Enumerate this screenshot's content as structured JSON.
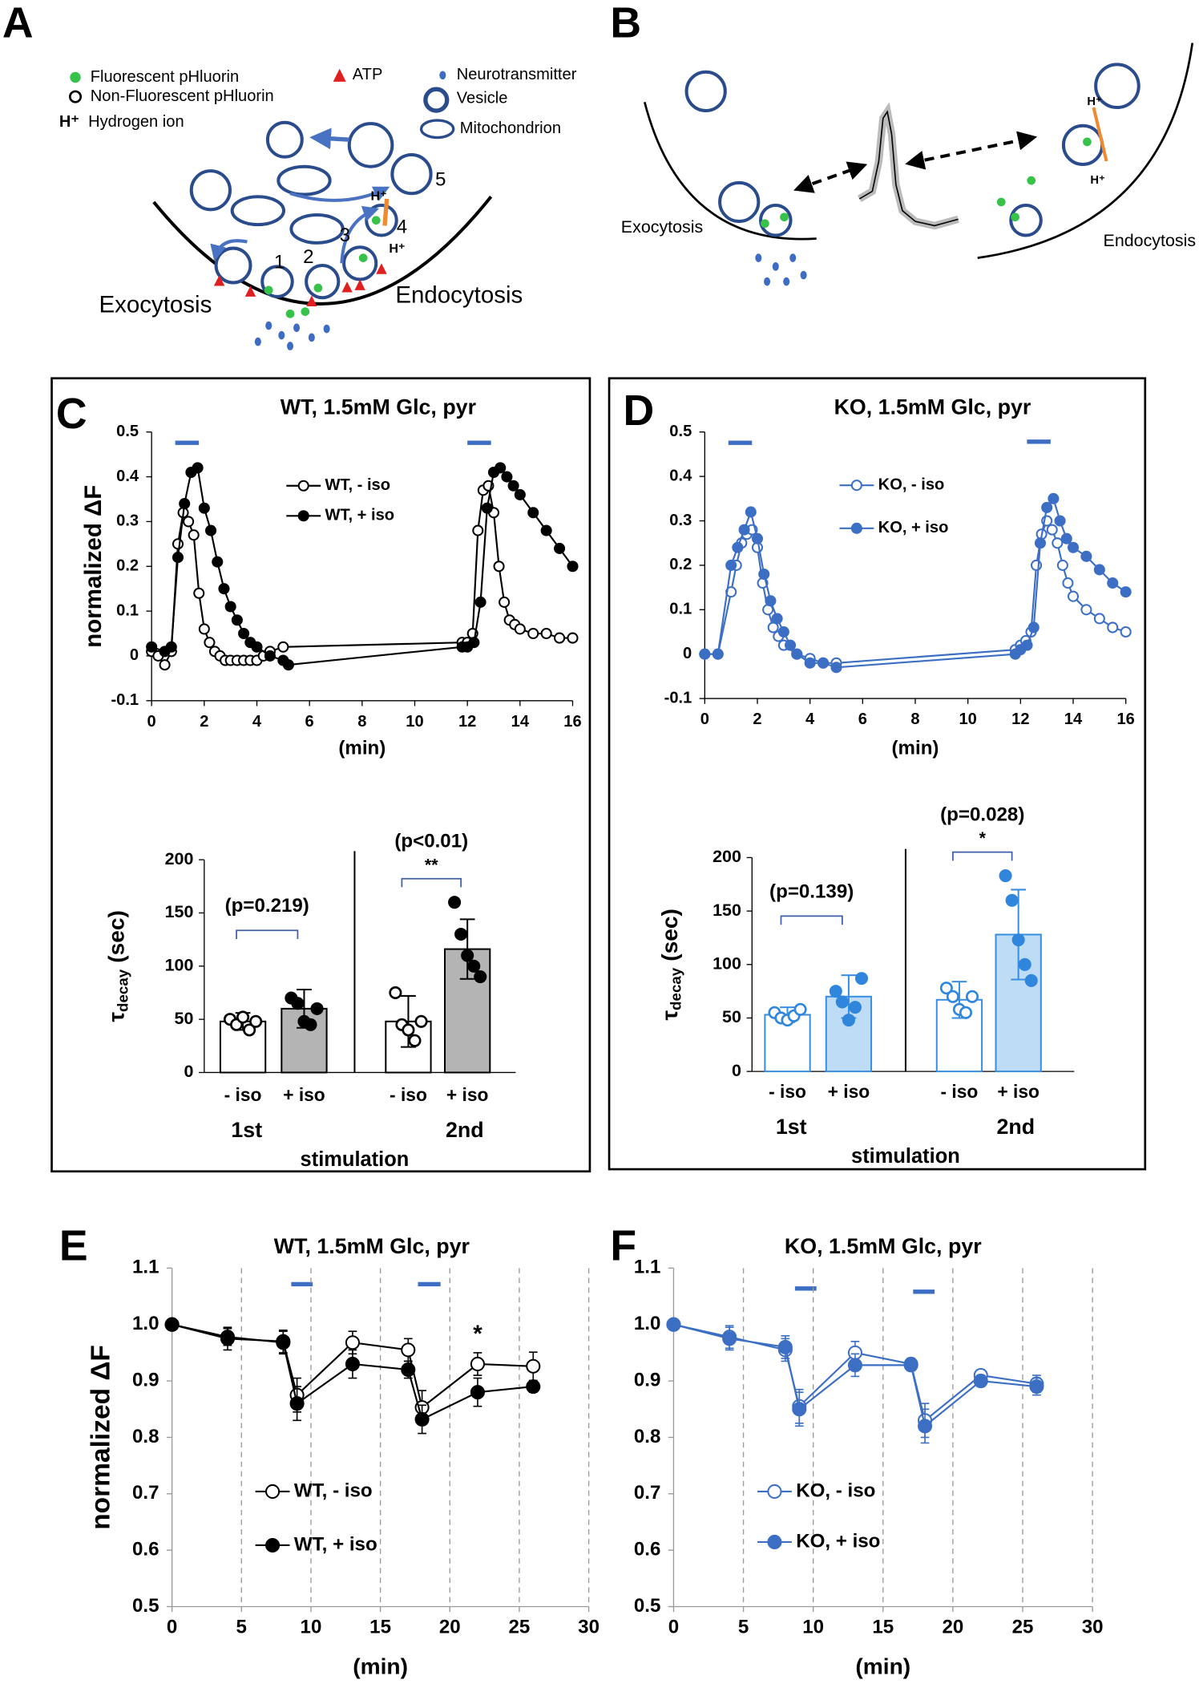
{
  "panel_labels": [
    "A",
    "B",
    "C",
    "D",
    "E",
    "F"
  ],
  "diagram_a": {
    "legend": [
      "Fluorescent pHluorin",
      "Non-Fluorescent pHluorin",
      "Hydrogen ion",
      "ATP",
      "Neurotransmitter",
      "Vesicle",
      "Mitochondrion"
    ],
    "hydrogen_symbol": "H⁺",
    "steps": [
      "1",
      "2",
      "3",
      "4",
      "5"
    ],
    "labels": [
      "Exocytosis",
      "Endocytosis"
    ]
  },
  "diagram_b": {
    "hydrogen_symbol": "H⁺",
    "labels": [
      "Exocytosis",
      "Endocytosis"
    ]
  },
  "chart_data": [
    {
      "type": "line",
      "title": "WT, 1.5mM Glc, pyr",
      "x_label": "(min)",
      "y_label": "normalized ΔF",
      "xlim": [
        0,
        16
      ],
      "ylim": [
        -0.1,
        0.5
      ],
      "xticks": [
        0,
        2,
        4,
        6,
        8,
        10,
        12,
        14,
        16
      ],
      "yticks": [
        -0.1,
        0,
        0.1,
        0.2,
        0.3,
        0.4,
        0.5
      ],
      "grid": false,
      "legend": "upper right",
      "series": [
        {
          "name": "WT, - iso",
          "color": "#000000",
          "marker": "open",
          "x": [
            0,
            0.25,
            0.5,
            0.75,
            1.0,
            1.2,
            1.4,
            1.6,
            1.8,
            2.0,
            2.2,
            2.4,
            2.6,
            2.8,
            3.0,
            3.25,
            3.5,
            3.75,
            4.0,
            4.25,
            4.5,
            5.0,
            11.8,
            12.0,
            12.2,
            12.4,
            12.6,
            12.8,
            13.0,
            13.2,
            13.4,
            13.6,
            13.8,
            14.0,
            14.5,
            15.0,
            15.5,
            16.0
          ],
          "values": [
            0.01,
            0.0,
            -0.02,
            0.01,
            0.25,
            0.32,
            0.3,
            0.27,
            0.14,
            0.06,
            0.03,
            0.01,
            0.0,
            -0.01,
            -0.01,
            -0.01,
            -0.01,
            -0.01,
            -0.01,
            0.0,
            0.01,
            0.02,
            0.03,
            0.03,
            0.05,
            0.28,
            0.37,
            0.38,
            0.32,
            0.2,
            0.12,
            0.08,
            0.07,
            0.06,
            0.05,
            0.05,
            0.04,
            0.04
          ]
        },
        {
          "name": "WT, + iso",
          "color": "#000000",
          "marker": "filled",
          "x": [
            0,
            0.5,
            0.75,
            1.0,
            1.25,
            1.5,
            1.75,
            2.0,
            2.25,
            2.5,
            2.75,
            3.0,
            3.25,
            3.5,
            3.75,
            4.0,
            4.5,
            5.0,
            5.2,
            11.8,
            12.0,
            12.25,
            12.5,
            12.75,
            13.0,
            13.25,
            13.5,
            13.75,
            14.0,
            14.5,
            15.0,
            15.5,
            16.0
          ],
          "values": [
            0.02,
            0.01,
            0.02,
            0.22,
            0.34,
            0.41,
            0.42,
            0.33,
            0.28,
            0.21,
            0.15,
            0.11,
            0.08,
            0.05,
            0.03,
            0.02,
            0.0,
            -0.01,
            -0.02,
            0.02,
            0.02,
            0.03,
            0.12,
            0.33,
            0.41,
            0.42,
            0.4,
            0.38,
            0.36,
            0.32,
            0.28,
            0.24,
            0.2
          ]
        }
      ]
    },
    {
      "type": "bar",
      "categories": [
        "- iso",
        "+ iso",
        "- iso",
        "+ iso"
      ],
      "groups": [
        "1st",
        "2nd"
      ],
      "x_label": "stimulation",
      "y_label": "τ",
      "y_label_sub": "decay",
      "y_label_unit": "(sec)",
      "ylim": [
        0,
        200
      ],
      "yticks": [
        0,
        50,
        100,
        150,
        200
      ],
      "values": [
        48,
        60,
        48,
        116
      ],
      "errors": [
        8,
        18,
        24,
        28
      ],
      "points": [
        [
          50,
          45,
          52,
          40,
          48
        ],
        [
          70,
          65,
          48,
          45,
          60
        ],
        [
          75,
          45,
          40,
          30,
          48
        ],
        [
          160,
          130,
          110,
          100,
          90
        ]
      ],
      "colors": [
        "#ffffff",
        "#b4b4b4",
        "#ffffff",
        "#b4b4b4"
      ],
      "edge_color": "#000000",
      "point_color": "#000000",
      "markers": [
        "open",
        "filled",
        "open",
        "filled"
      ],
      "comparisons": [
        {
          "label": "(p=0.219)"
        },
        {
          "label": "(p<0.01)",
          "stars": "**"
        }
      ]
    },
    {
      "type": "line",
      "title": "KO, 1.5mM Glc, pyr",
      "x_label": "(min)",
      "xlim": [
        0,
        16
      ],
      "ylim": [
        -0.1,
        0.5
      ],
      "xticks": [
        0,
        2,
        4,
        6,
        8,
        10,
        12,
        14,
        16
      ],
      "yticks": [
        -0.1,
        0,
        0.1,
        0.2,
        0.3,
        0.4,
        0.5
      ],
      "grid": false,
      "legend": "upper right",
      "series": [
        {
          "name": "KO, - iso",
          "color": "#3c6fc4",
          "marker": "open",
          "x": [
            0,
            0.5,
            1.0,
            1.2,
            1.4,
            1.6,
            1.8,
            2.0,
            2.2,
            2.4,
            2.6,
            2.8,
            3.0,
            3.5,
            4.0,
            4.5,
            5.0,
            11.8,
            12.0,
            12.2,
            12.4,
            12.6,
            12.8,
            13.0,
            13.2,
            13.4,
            13.6,
            13.8,
            14.0,
            14.5,
            15.0,
            15.5,
            16.0
          ],
          "values": [
            0.0,
            0.0,
            0.14,
            0.2,
            0.25,
            0.27,
            0.28,
            0.24,
            0.16,
            0.1,
            0.06,
            0.04,
            0.02,
            0.0,
            -0.01,
            -0.02,
            -0.02,
            0.01,
            0.02,
            0.03,
            0.05,
            0.2,
            0.27,
            0.3,
            0.28,
            0.25,
            0.2,
            0.16,
            0.13,
            0.1,
            0.08,
            0.06,
            0.05
          ]
        },
        {
          "name": "KO, + iso",
          "color": "#3c6fc4",
          "marker": "filled",
          "x": [
            0,
            0.5,
            1.0,
            1.25,
            1.5,
            1.75,
            2.0,
            2.25,
            2.5,
            2.75,
            3.0,
            3.25,
            3.5,
            4.0,
            4.5,
            5.0,
            11.8,
            12.0,
            12.25,
            12.5,
            12.75,
            13.0,
            13.25,
            13.5,
            13.75,
            14.0,
            14.5,
            15.0,
            15.5,
            16.0
          ],
          "values": [
            0.0,
            0.0,
            0.2,
            0.24,
            0.28,
            0.32,
            0.26,
            0.18,
            0.12,
            0.08,
            0.05,
            0.02,
            0.0,
            -0.02,
            -0.02,
            -0.03,
            0.0,
            0.01,
            0.02,
            0.06,
            0.25,
            0.33,
            0.35,
            0.3,
            0.26,
            0.24,
            0.22,
            0.19,
            0.16,
            0.14
          ]
        }
      ]
    },
    {
      "type": "bar",
      "categories": [
        "- iso",
        "+ iso",
        "- iso",
        "+ iso"
      ],
      "groups": [
        "1st",
        "2nd"
      ],
      "x_label": "stimulation",
      "y_label": "τ",
      "y_label_sub": "decay",
      "y_label_unit": "(sec)",
      "ylim": [
        0,
        200
      ],
      "yticks": [
        0,
        50,
        100,
        150,
        200
      ],
      "values": [
        53,
        70,
        67,
        128
      ],
      "errors": [
        7,
        20,
        17,
        42
      ],
      "points": [
        [
          55,
          50,
          48,
          52,
          58
        ],
        [
          75,
          65,
          48,
          60,
          87
        ],
        [
          78,
          70,
          58,
          55,
          70
        ],
        [
          183,
          160,
          123,
          100,
          85
        ]
      ],
      "colors": [
        "#ffffff",
        "#bfdcf7",
        "#ffffff",
        "#bfdcf7"
      ],
      "edge_color": "#3a8ee0",
      "point_color": "#2f86dc",
      "markers": [
        "open",
        "filled",
        "open",
        "filled"
      ],
      "comparisons": [
        {
          "label": "(p=0.139)"
        },
        {
          "label": "(p=0.028)",
          "stars": "*"
        }
      ]
    },
    {
      "type": "line",
      "title": "WT, 1.5mM Glc, pyr",
      "x_label": "(min)",
      "y_label": "normalized ΔF",
      "xlim": [
        0,
        30
      ],
      "ylim": [
        0.5,
        1.1
      ],
      "xticks": [
        0,
        5,
        10,
        15,
        20,
        25,
        30
      ],
      "yticks": [
        0.5,
        0.6,
        0.7,
        0.8,
        0.9,
        {
          "value": 1,
          "label": "1.0"
        },
        1.1
      ],
      "grid": true,
      "legend": "lower left",
      "point_labels": [
        null,
        null,
        null,
        null,
        null,
        null,
        null,
        "*",
        null
      ],
      "series": [
        {
          "name": "WT, - iso",
          "color": "#000000",
          "marker": "open",
          "x": [
            0,
            4,
            8,
            9,
            13,
            17,
            18,
            22,
            26
          ],
          "values": [
            1.0,
            0.975,
            0.97,
            0.875,
            0.968,
            0.955,
            0.853,
            0.93,
            0.926
          ],
          "errors": [
            0,
            0.02,
            0.02,
            0.03,
            0.02,
            0.02,
            0.03,
            0.02,
            0.025
          ]
        },
        {
          "name": "WT, + iso",
          "color": "#000000",
          "marker": "filled",
          "x": [
            0,
            4,
            8,
            9,
            13,
            17,
            18,
            22,
            26
          ],
          "values": [
            1.0,
            0.978,
            0.968,
            0.86,
            0.93,
            0.92,
            0.832,
            0.88,
            0.89
          ],
          "errors": [
            0,
            0.015,
            0.02,
            0.03,
            0.025,
            0.015,
            0.025,
            0.025,
            0.01
          ]
        }
      ]
    },
    {
      "type": "line",
      "title": "KO, 1.5mM Glc, pyr",
      "x_label": "(min)",
      "xlim": [
        0,
        30
      ],
      "ylim": [
        0.5,
        1.1
      ],
      "xticks": [
        0,
        5,
        10,
        15,
        20,
        25,
        30
      ],
      "yticks": [
        0.5,
        0.6,
        0.7,
        0.8,
        0.9,
        {
          "value": 1,
          "label": "1.0"
        },
        1.1
      ],
      "grid": true,
      "legend": "lower left",
      "series": [
        {
          "name": "KO, - iso",
          "color": "#3c6fc4",
          "marker": "open",
          "x": [
            0,
            4,
            8,
            9,
            13,
            17,
            18,
            22,
            26
          ],
          "values": [
            1.0,
            0.978,
            0.955,
            0.855,
            0.95,
            0.93,
            0.83,
            0.91,
            0.895
          ],
          "errors": [
            0,
            0.02,
            0.02,
            0.03,
            0.02,
            0.01,
            0.03,
            0.01,
            0.015
          ]
        },
        {
          "name": "KO, + iso",
          "color": "#3c6fc4",
          "marker": "filled",
          "x": [
            0,
            4,
            8,
            9,
            13,
            17,
            18,
            22,
            26
          ],
          "values": [
            1.0,
            0.975,
            0.96,
            0.85,
            0.928,
            0.928,
            0.82,
            0.9,
            0.89
          ],
          "errors": [
            0,
            0.02,
            0.02,
            0.03,
            0.02,
            0.01,
            0.03,
            0.01,
            0.015
          ]
        }
      ]
    }
  ]
}
